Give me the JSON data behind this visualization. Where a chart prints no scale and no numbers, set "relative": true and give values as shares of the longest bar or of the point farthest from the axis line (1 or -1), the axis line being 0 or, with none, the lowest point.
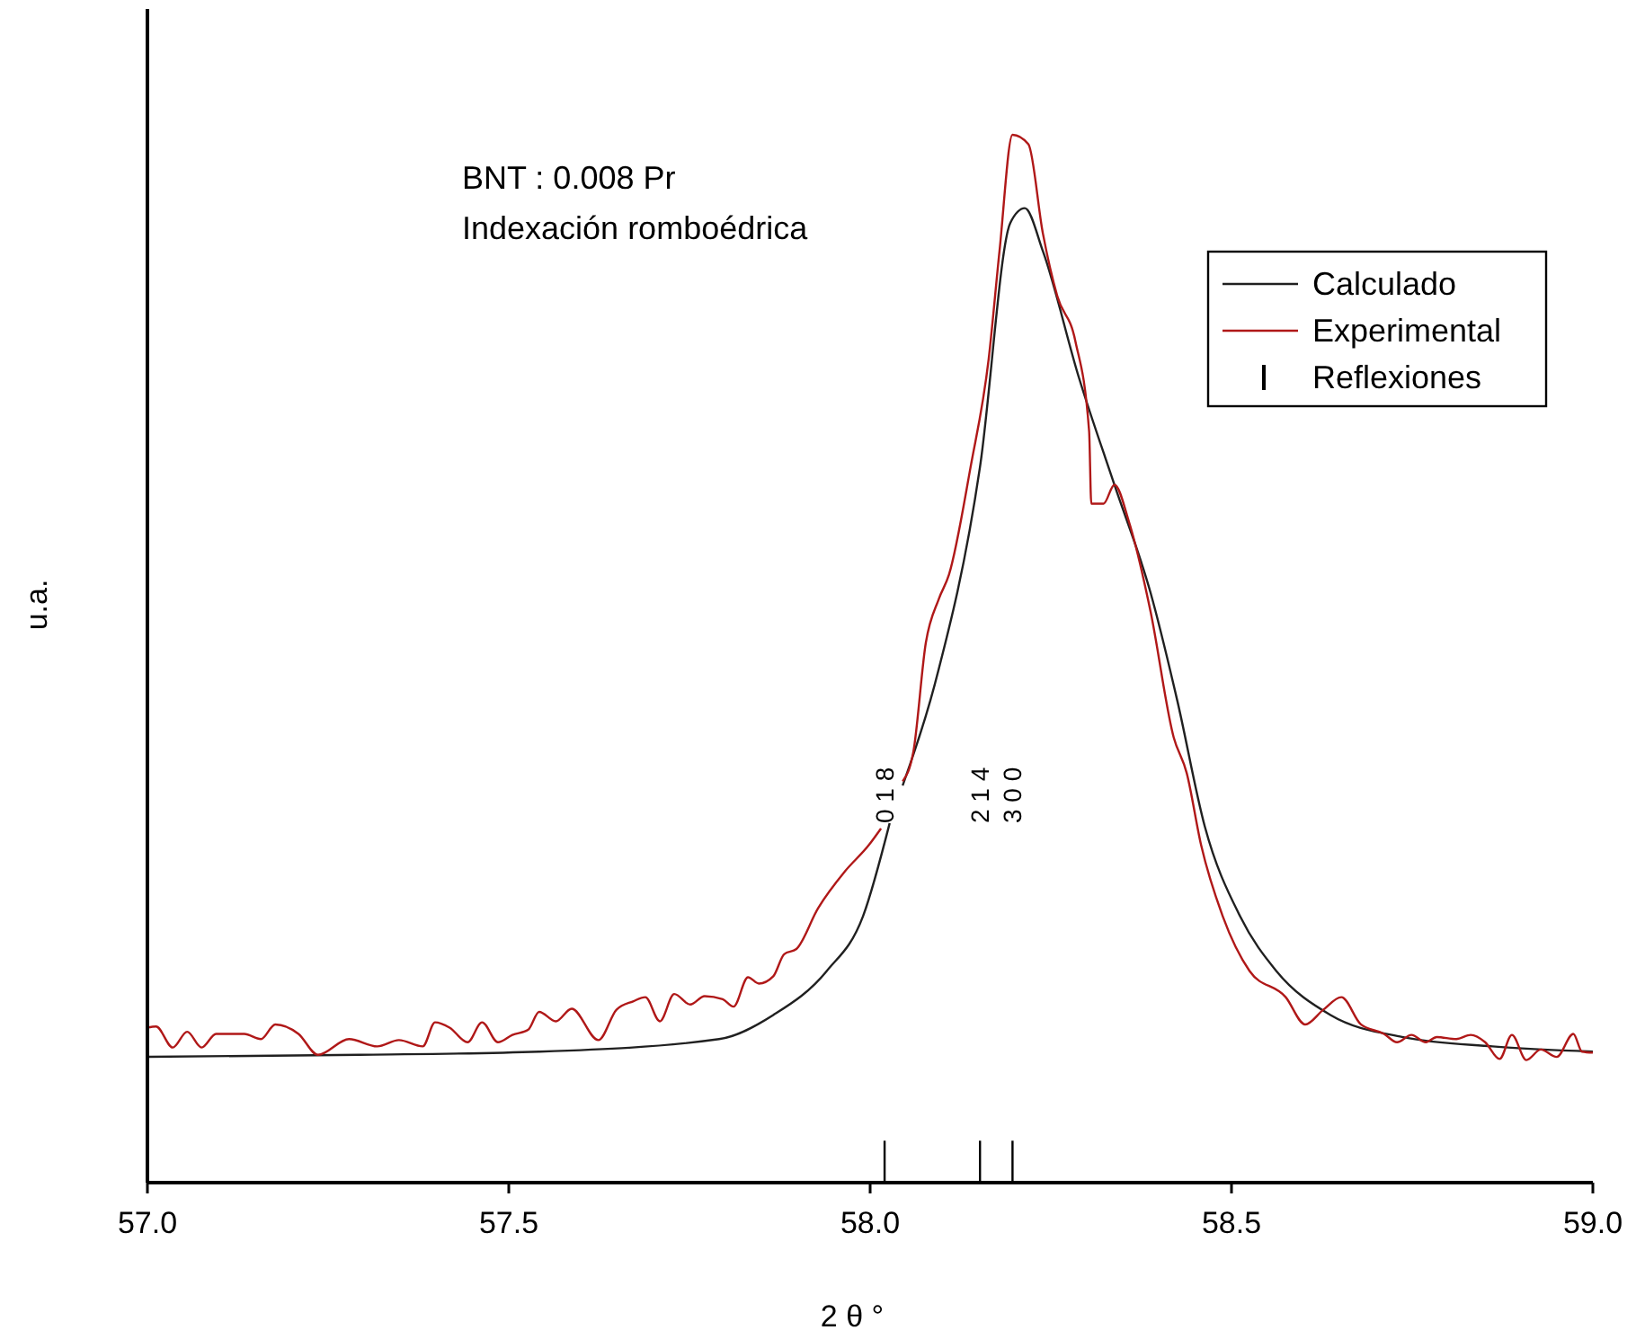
{
  "chart_data": {
    "type": "line",
    "relative": true,
    "title": "BNT : 0.008 Pr",
    "subtitle": "Indexación romboédrica",
    "xlabel": "2 θ °",
    "ylabel": "u.a.",
    "xlim": [
      57,
      59
    ],
    "xticks": [
      {
        "value": 57,
        "label": "57.0"
      },
      {
        "value": 57.5,
        "label": "57.5"
      },
      {
        "value": 58,
        "label": "58.0"
      },
      {
        "value": 58.5,
        "label": "58.5"
      },
      {
        "value": 59,
        "label": "59.0"
      }
    ],
    "legend": "top right",
    "marker": "none",
    "line_style": "solid",
    "grid": false,
    "series": [
      {
        "name": "Calculado",
        "color": "#202020",
        "x": [
          57.0,
          57.294,
          57.542,
          57.791,
          57.866,
          57.94,
          57.99,
          58.027,
          58.036,
          58.045,
          58.09,
          58.152,
          58.194,
          58.214,
          58.239,
          58.289,
          58.338,
          58.388,
          58.425,
          58.463,
          58.512,
          58.562,
          58.637,
          58.736,
          58.861,
          59.0
        ],
        "values": [
          0.12,
          0.122,
          0.125,
          0.137,
          0.16,
          0.202,
          0.254,
          0.343,
          null,
          0.379,
          0.477,
          0.683,
          0.916,
          0.93,
          0.889,
          0.768,
          0.666,
          0.563,
          0.46,
          0.34,
          0.254,
          0.202,
          0.16,
          0.139,
          0.13,
          0.125
        ]
      },
      {
        "name": "Experimental",
        "color": "#b01818",
        "x": [
          57.0,
          57.012,
          57.035,
          57.055,
          57.075,
          57.095,
          57.134,
          57.157,
          57.177,
          57.209,
          57.236,
          57.279,
          57.318,
          57.348,
          57.381,
          57.398,
          57.418,
          57.443,
          57.463,
          57.485,
          57.505,
          57.527,
          57.542,
          57.565,
          57.587,
          57.624,
          57.649,
          57.672,
          57.689,
          57.709,
          57.729,
          57.751,
          57.771,
          57.796,
          57.811,
          57.831,
          57.846,
          57.866,
          57.881,
          57.898,
          57.928,
          57.965,
          57.998,
          58.015,
          58.03,
          58.045,
          58.06,
          58.077,
          58.095,
          58.109,
          58.139,
          58.164,
          58.179,
          58.197,
          58.219,
          58.239,
          58.259,
          58.284,
          58.303,
          58.306,
          58.323,
          58.338,
          58.358,
          58.388,
          58.42,
          58.438,
          58.458,
          58.488,
          58.525,
          58.575,
          58.602,
          58.627,
          58.652,
          58.679,
          58.711,
          58.729,
          58.749,
          58.769,
          58.784,
          58.811,
          58.831,
          58.851,
          58.871,
          58.888,
          58.908,
          58.928,
          58.95,
          58.973,
          58.985,
          59.0
        ],
        "values": [
          0.148,
          0.149,
          0.129,
          0.144,
          0.129,
          0.142,
          0.142,
          0.137,
          0.151,
          0.142,
          0.122,
          0.137,
          0.13,
          0.136,
          0.13,
          0.153,
          0.148,
          0.134,
          0.153,
          0.134,
          0.141,
          0.146,
          0.163,
          0.154,
          0.166,
          0.136,
          0.165,
          0.173,
          0.177,
          0.154,
          0.18,
          0.17,
          0.178,
          0.175,
          0.168,
          0.196,
          0.19,
          0.197,
          0.218,
          0.223,
          0.262,
          0.297,
          0.322,
          0.338,
          null,
          0.383,
          0.412,
          0.515,
          0.557,
          0.58,
          0.683,
          0.786,
          0.889,
          1,
          0.991,
          0.906,
          0.846,
          0.803,
          0.717,
          0.648,
          0.648,
          0.666,
          0.631,
          0.545,
          0.425,
          0.391,
          0.322,
          0.254,
          0.202,
          0.177,
          0.151,
          0.165,
          0.177,
          0.151,
          0.142,
          0.134,
          0.141,
          0.134,
          0.139,
          0.137,
          0.141,
          0.134,
          0.118,
          0.141,
          0.117,
          0.127,
          0.12,
          0.142,
          0.125,
          0.124
        ]
      },
      {
        "name": "Reflexiones",
        "type": "bar",
        "color": "#000000",
        "x": [
          58.02,
          58.152,
          58.197
        ],
        "values": [
          0.04,
          0.04,
          0.04
        ]
      }
    ],
    "annotations": [
      "0 1 8",
      "2 1 4",
      "3 0 0"
    ]
  }
}
